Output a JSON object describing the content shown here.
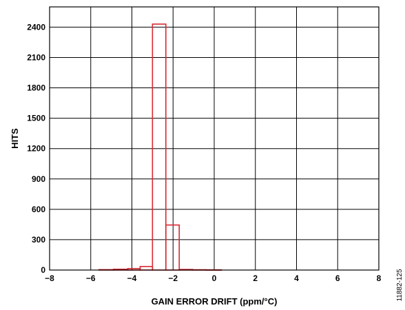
{
  "chart_data": {
    "type": "bar",
    "title": "",
    "xlabel": "GAIN ERROR DRIFT (ppm/°C)",
    "ylabel": "HITS",
    "xlim": [
      -8,
      8
    ],
    "ylim": [
      0,
      2600
    ],
    "x_ticks": [
      "−8",
      "−6",
      "−4",
      "−2",
      "0",
      "2",
      "4",
      "6",
      "8"
    ],
    "x_tick_values": [
      -8,
      -6,
      -4,
      -2,
      0,
      2,
      4,
      6,
      8
    ],
    "y_ticks": [
      "0",
      "300",
      "600",
      "900",
      "1200",
      "1500",
      "1800",
      "2100",
      "2400"
    ],
    "y_tick_values": [
      0,
      300,
      600,
      900,
      1200,
      1500,
      1800,
      2100,
      2400
    ],
    "grid": true,
    "series_color": "#d7282f",
    "bins": [
      {
        "x0": -5.6,
        "x1": -4.9,
        "count": 4
      },
      {
        "x0": -4.9,
        "x1": -4.2,
        "count": 8
      },
      {
        "x0": -4.2,
        "x1": -3.6,
        "count": 15
      },
      {
        "x0": -3.6,
        "x1": -3.0,
        "count": 35
      },
      {
        "x0": -3.0,
        "x1": -2.35,
        "count": 2430
      },
      {
        "x0": -2.35,
        "x1": -1.7,
        "count": 445
      },
      {
        "x0": -1.7,
        "x1": -1.05,
        "count": 6
      },
      {
        "x0": -1.05,
        "x1": -0.4,
        "count": 3
      },
      {
        "x0": -0.4,
        "x1": 0.35,
        "count": 2
      }
    ]
  },
  "figure_id": "11882-125"
}
